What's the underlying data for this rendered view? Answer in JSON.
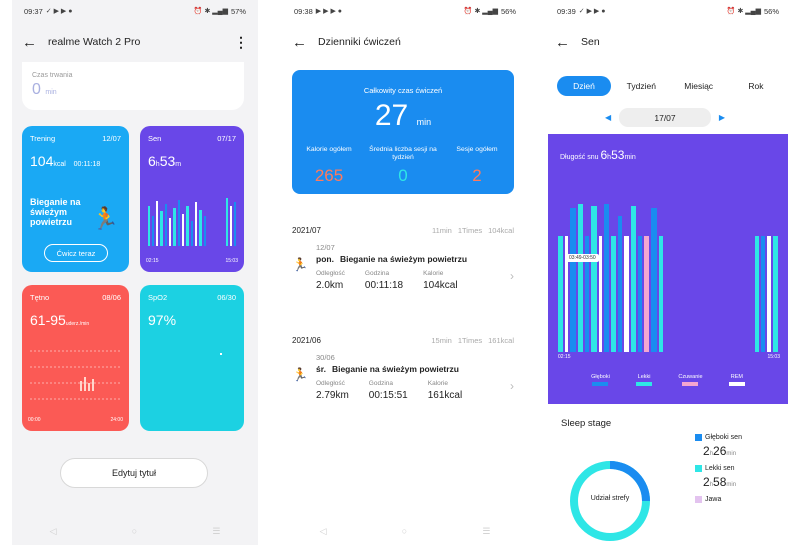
{
  "phone1": {
    "status": {
      "time": "09:37",
      "battery": "57%"
    },
    "title": "realme Watch 2 Pro",
    "top": {
      "label": "Czas trwania",
      "value": "0",
      "unit": "min"
    },
    "training": {
      "title": "Trening",
      "date": "12/07",
      "value": "104",
      "unit": "kcal",
      "duration": "00:11:18",
      "activity": "Bieganie na świeżym powietrzu",
      "button": "Ćwicz teraz"
    },
    "sleep": {
      "title": "Sen",
      "date": "07/17",
      "hours": "6",
      "h": "h",
      "minutes": "53",
      "m": "m",
      "start": "02:15",
      "end": "15:03"
    },
    "heart": {
      "title": "Tętno",
      "date": "08/06",
      "value": "61-95",
      "unit": "uderz./min",
      "start": "00:00",
      "end": "24:00"
    },
    "spo2": {
      "title": "SpO2",
      "date": "06/30",
      "value": "97%"
    },
    "edit_button": "Edytuj tytuł"
  },
  "phone2": {
    "status": {
      "time": "09:38",
      "battery": "56%"
    },
    "title": "Dzienniki ćwiczeń",
    "summary": {
      "heading": "Całkowity czas ćwiczeń",
      "total": "27",
      "unit": "min",
      "stats": [
        {
          "label": "Kalorie ogółem",
          "value": "265",
          "color": "#ff7a5c"
        },
        {
          "label": "Średnia liczba sesji na tydzień",
          "value": "0",
          "color": "#2ee6e6"
        },
        {
          "label": "Sesje ogółem",
          "value": "2",
          "color": "#ff7a5c"
        }
      ]
    },
    "months": [
      {
        "month": "2021/07",
        "time": "11min",
        "times": "1Times",
        "kcal": "104kcal",
        "entry": {
          "date": "12/07",
          "day": "pon.",
          "name": "Bieganie na świeżym powietrzu",
          "distance_label": "Odległość",
          "distance": "2.0km",
          "time_label": "Godzina",
          "time": "00:11:18",
          "cal_label": "Kalorie",
          "cal": "104kcal"
        }
      },
      {
        "month": "2021/06",
        "time": "15min",
        "times": "1Times",
        "kcal": "161kcal",
        "entry": {
          "date": "30/06",
          "day": "śr.",
          "name": "Bieganie na świeżym powietrzu",
          "distance_label": "Odległość",
          "distance": "2.79km",
          "time_label": "Godzina",
          "time": "00:15:51",
          "cal_label": "Kalorie",
          "cal": "161kcal"
        }
      }
    ]
  },
  "phone3": {
    "status": {
      "time": "09:39",
      "battery": "56%"
    },
    "title": "Sen",
    "tabs": [
      "Dzień",
      "Tydzień",
      "Miesiąc",
      "Rok"
    ],
    "date": "17/07",
    "chart": {
      "duration_label": "Długość snu",
      "hours": "6",
      "h": "h",
      "minutes": "53",
      "m": "min",
      "start": "02:15",
      "end": "15:03",
      "tooltip": "03:49-03:50"
    },
    "legend": [
      {
        "label": "Głęboki",
        "color": "#1a8cf0"
      },
      {
        "label": "Lekki",
        "color": "#2ee6e6"
      },
      {
        "label": "Czuwanie",
        "color": "#f4a6d0"
      },
      {
        "label": "REM",
        "color": "#ffffff"
      }
    ],
    "stage_title": "Sleep stage",
    "stages": [
      {
        "label": "Głęboki sen",
        "hours": "2",
        "h": "h",
        "minutes": "26",
        "m": "min",
        "color": "#1a8cf0"
      },
      {
        "label": "Lekki sen",
        "hours": "2",
        "h": "h",
        "minutes": "58",
        "m": "min",
        "color": "#2ee6e6"
      },
      {
        "label": "Jawa",
        "color": "#e3c3ef"
      }
    ],
    "donut_label": "Udział strefy"
  }
}
